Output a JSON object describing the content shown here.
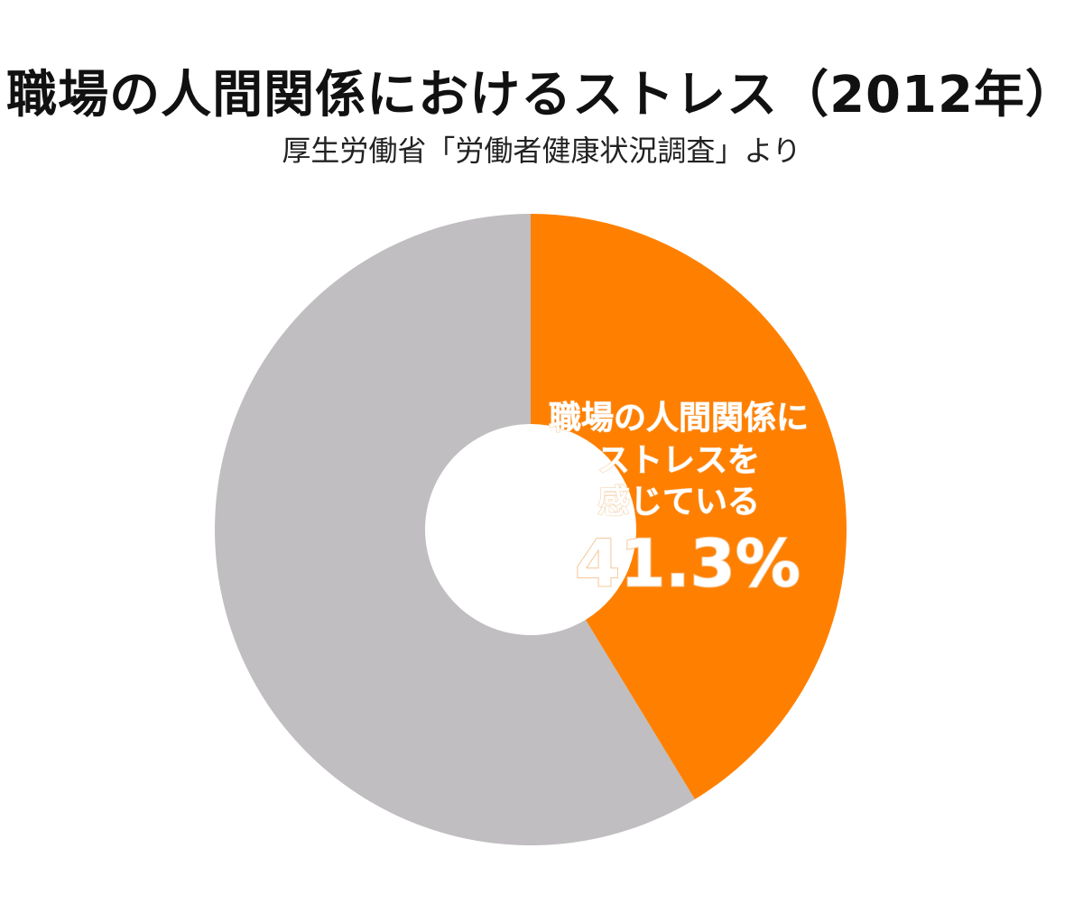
{
  "title": "職場の人間関係におけるストレス（2012年）",
  "subtitle": "厚生労働省「労働者健康状況調査」より",
  "chart_data": {
    "type": "pie",
    "style": "donut",
    "title": "職場の人間関係におけるストレス（2012年）",
    "subtitle": "厚生労働省「労働者健康状況調査」より",
    "slices": [
      {
        "label_lines": [
          "職場の人間関係に",
          "ストレスを",
          "感じている"
        ],
        "value": 41.3,
        "value_label": "41.3%",
        "color": "#ff8000"
      },
      {
        "label_lines": [],
        "value": 58.7,
        "value_label": "",
        "color": "#c0bec0"
      }
    ],
    "start_angle": "12 o'clock",
    "direction": "clockwise",
    "legend": "none"
  }
}
